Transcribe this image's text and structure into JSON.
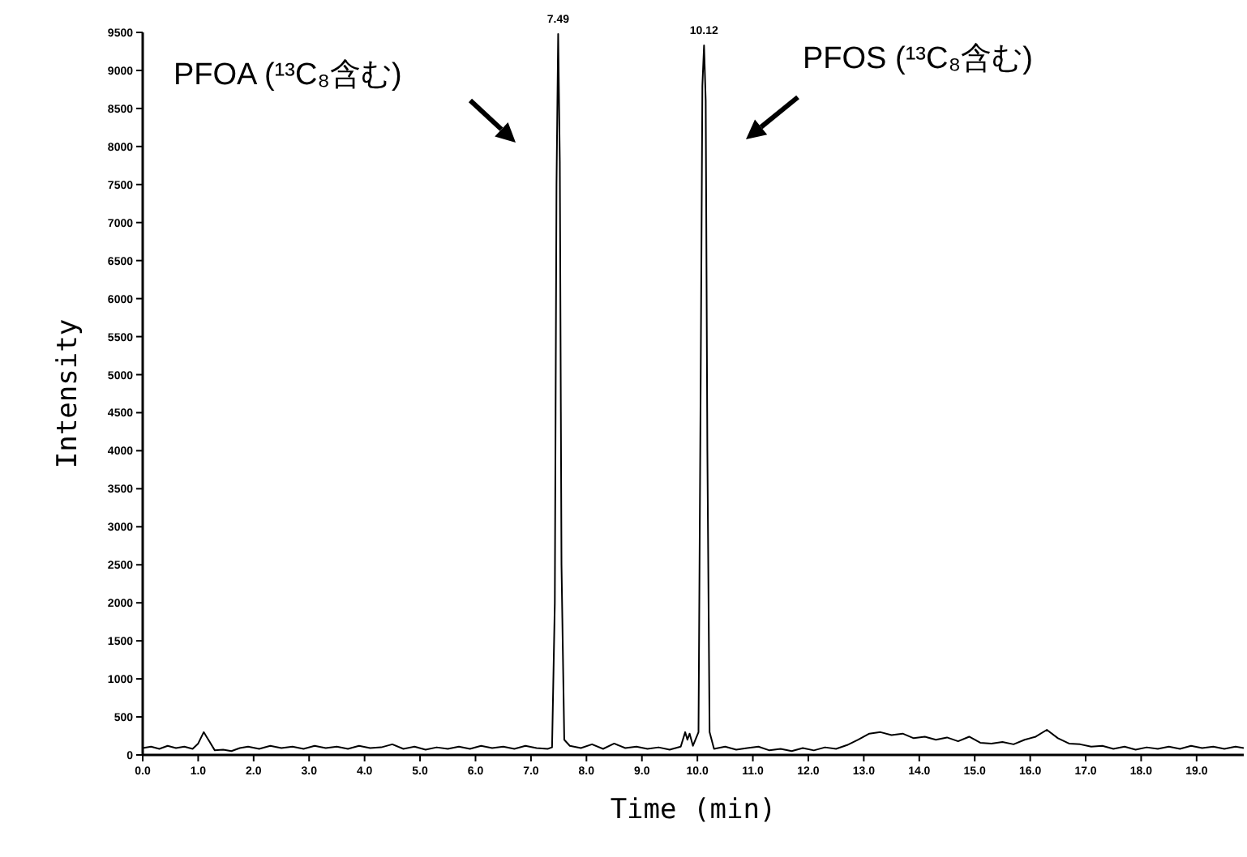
{
  "chart_data": {
    "type": "line",
    "xlabel": "Time (min)",
    "ylabel": "Intensity",
    "xlim": [
      0,
      19.85
    ],
    "ylim": [
      0,
      9500
    ],
    "xticks": [
      {
        "value": 0,
        "label": "0.0"
      },
      {
        "value": 1,
        "label": "1.0"
      },
      {
        "value": 2,
        "label": "2.0"
      },
      {
        "value": 3,
        "label": "3.0"
      },
      {
        "value": 4,
        "label": "4.0"
      },
      {
        "value": 5,
        "label": "5.0"
      },
      {
        "value": 6,
        "label": "6.0"
      },
      {
        "value": 7,
        "label": "7.0"
      },
      {
        "value": 8,
        "label": "8.0"
      },
      {
        "value": 9,
        "label": "9.0"
      },
      {
        "value": 10,
        "label": "10.0"
      },
      {
        "value": 11,
        "label": "11.0"
      },
      {
        "value": 12,
        "label": "12.0"
      },
      {
        "value": 13,
        "label": "13.0"
      },
      {
        "value": 14,
        "label": "14.0"
      },
      {
        "value": 15,
        "label": "15.0"
      },
      {
        "value": 16,
        "label": "16.0"
      },
      {
        "value": 17,
        "label": "17.0"
      },
      {
        "value": 18,
        "label": "18.0"
      },
      {
        "value": 19,
        "label": "19.0"
      }
    ],
    "yticks": [
      0,
      500,
      1000,
      1500,
      2000,
      2500,
      3000,
      3500,
      4000,
      4500,
      5000,
      5500,
      6000,
      6500,
      7000,
      7500,
      8000,
      8500,
      9000,
      9500
    ],
    "grid": false,
    "marker": "none",
    "line_style": "solid",
    "series": [
      {
        "color": "#000000",
        "x": [
          0,
          0.15,
          0.3,
          0.45,
          0.6,
          0.75,
          0.9,
          1.0,
          1.1,
          1.2,
          1.3,
          1.45,
          1.6,
          1.75,
          1.9,
          2.1,
          2.3,
          2.5,
          2.7,
          2.9,
          3.1,
          3.3,
          3.5,
          3.7,
          3.9,
          4.1,
          4.3,
          4.5,
          4.7,
          4.9,
          5.1,
          5.3,
          5.5,
          5.7,
          5.9,
          6.1,
          6.3,
          6.5,
          6.7,
          6.9,
          7.1,
          7.3,
          7.38,
          7.43,
          7.46,
          7.49,
          7.52,
          7.55,
          7.6,
          7.7,
          7.9,
          8.1,
          8.3,
          8.5,
          8.7,
          8.9,
          9.1,
          9.3,
          9.5,
          9.7,
          9.78,
          9.82,
          9.86,
          9.92,
          10.02,
          10.06,
          10.09,
          10.12,
          10.15,
          10.18,
          10.22,
          10.3,
          10.5,
          10.7,
          10.9,
          11.1,
          11.3,
          11.5,
          11.7,
          11.9,
          12.1,
          12.3,
          12.5,
          12.7,
          12.9,
          13.1,
          13.3,
          13.5,
          13.7,
          13.9,
          14.1,
          14.3,
          14.5,
          14.7,
          14.9,
          15.1,
          15.3,
          15.5,
          15.7,
          15.9,
          16.1,
          16.3,
          16.5,
          16.7,
          16.9,
          17.1,
          17.3,
          17.5,
          17.7,
          17.9,
          18.1,
          18.3,
          18.5,
          18.7,
          18.9,
          19.1,
          19.3,
          19.5,
          19.7,
          19.85
        ],
        "values": [
          90,
          110,
          80,
          120,
          90,
          110,
          80,
          150,
          300,
          180,
          60,
          70,
          50,
          90,
          110,
          80,
          120,
          90,
          110,
          80,
          120,
          90,
          110,
          80,
          120,
          90,
          100,
          140,
          80,
          110,
          70,
          100,
          80,
          110,
          80,
          120,
          90,
          110,
          80,
          120,
          90,
          80,
          100,
          2000,
          7500,
          9480,
          7800,
          2500,
          200,
          120,
          90,
          140,
          80,
          150,
          90,
          110,
          80,
          100,
          70,
          110,
          300,
          200,
          280,
          120,
          300,
          5000,
          8800,
          9330,
          8600,
          4000,
          300,
          80,
          110,
          70,
          90,
          110,
          60,
          80,
          50,
          90,
          60,
          100,
          80,
          130,
          200,
          280,
          300,
          260,
          280,
          220,
          240,
          200,
          230,
          180,
          240,
          160,
          150,
          170,
          140,
          200,
          240,
          330,
          220,
          150,
          140,
          110,
          120,
          80,
          110,
          70,
          100,
          80,
          110,
          80,
          120,
          90,
          110,
          80,
          110,
          90
        ]
      }
    ],
    "annotations": [
      {
        "text": "7.49",
        "x": 7.49,
        "y": 9480
      },
      {
        "text": "10.12",
        "x": 10.12,
        "y": 9330
      },
      "PFOA (¹³C₈含む)",
      "PFOS (¹³C₈含む)"
    ]
  }
}
